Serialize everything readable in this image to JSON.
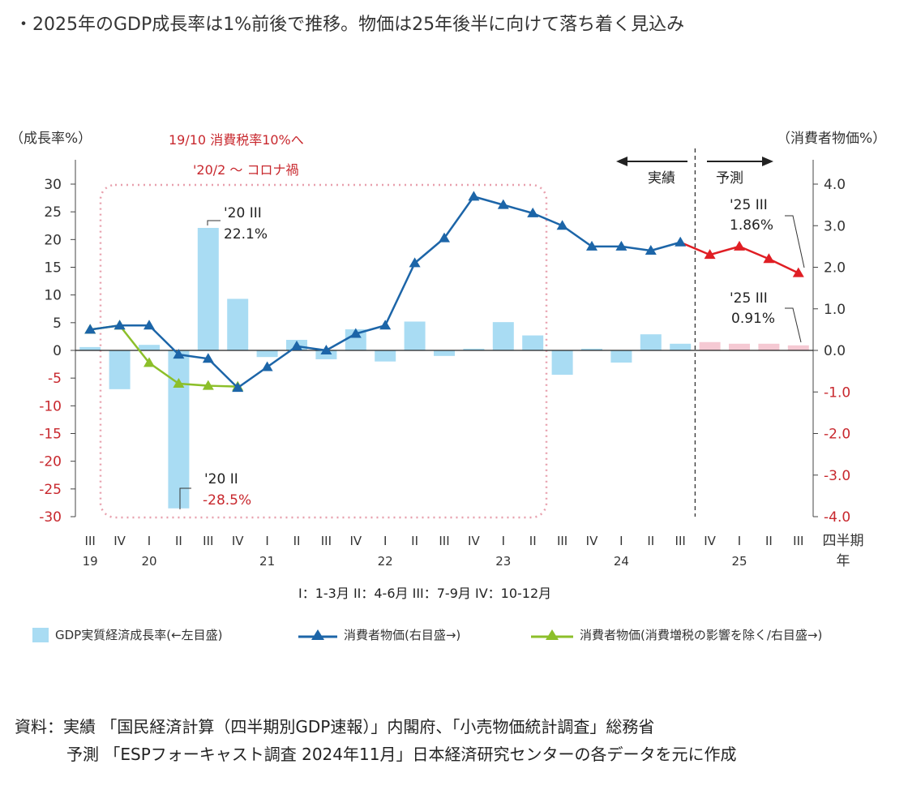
{
  "headline": "・2025年のGDP成長率は1%前後で推移。物価は25年後半に向けて落ち着く見込み",
  "colors": {
    "bar": "#a9dcf3",
    "bar_forecast": "#f5c9d3",
    "cpi": "#1c65a8",
    "cpi_forecast": "#e01e24",
    "cpi_ex_tax": "#8cbf2a",
    "negative_tick": "#c8282e",
    "annotation_red": "#c8282e",
    "box": "#e8a0ad"
  },
  "chart_data": {
    "type": "bar",
    "left_axis_label": "（成長率%）",
    "right_axis_label": "（消費者物価%）",
    "left_ylim": [
      -30,
      30
    ],
    "right_ylim": [
      -4.0,
      4.0
    ],
    "left_ticks": [
      "30",
      "25",
      "20",
      "15",
      "10",
      "5",
      "0",
      "-5",
      "-10",
      "-15",
      "-20",
      "-25",
      "-30"
    ],
    "right_ticks": [
      "4.0",
      "3.0",
      "2.0",
      "1.0",
      "0.0",
      "-1.0",
      "-2.0",
      "-3.0",
      "-4.0"
    ],
    "quarters": [
      "III",
      "IV",
      "I",
      "II",
      "III",
      "IV",
      "I",
      "II",
      "III",
      "IV",
      "I",
      "II",
      "III",
      "IV",
      "I",
      "II",
      "III",
      "IV",
      "I",
      "II",
      "III",
      "IV",
      "I",
      "II",
      "III"
    ],
    "years": [
      {
        "label": "19",
        "index": 0
      },
      {
        "label": "20",
        "index": 2
      },
      {
        "label": "21",
        "index": 6
      },
      {
        "label": "22",
        "index": 10
      },
      {
        "label": "23",
        "index": 14
      },
      {
        "label": "24",
        "index": 18
      },
      {
        "label": "25",
        "index": 22
      }
    ],
    "axis_end_label_top": "四半期",
    "axis_end_label_bottom": "年",
    "forecast_start_index": 21,
    "series": [
      {
        "name": "GDP実質経済成長率(←左目盛)",
        "kind": "bar",
        "axis": "left",
        "values": [
          0.6,
          -7.0,
          1.0,
          -28.5,
          22.1,
          9.3,
          -1.2,
          1.9,
          -1.6,
          3.8,
          -2.0,
          5.2,
          -1.0,
          0.3,
          5.1,
          2.7,
          -4.4,
          0.3,
          -2.2,
          2.9,
          1.2,
          1.5,
          1.2,
          1.2,
          0.91
        ]
      },
      {
        "name": "消費者物価(右目盛→)",
        "kind": "line",
        "axis": "right",
        "values": [
          0.5,
          0.6,
          0.6,
          -0.1,
          -0.2,
          -0.9,
          -0.4,
          0.1,
          0.0,
          0.4,
          0.6,
          2.1,
          2.7,
          3.7,
          3.5,
          3.3,
          3.0,
          2.5,
          2.5,
          2.4,
          2.6,
          2.3,
          2.5,
          2.2,
          1.86
        ]
      },
      {
        "name": "消費者物価(消費増税の影響を除く/右目盛→)",
        "kind": "line",
        "axis": "right",
        "values": [
          0.5,
          0.6,
          -0.3,
          -0.8,
          -0.85,
          -0.87
        ]
      }
    ],
    "annotations": {
      "box_title_1": "19/10 消費税率10%へ",
      "box_title_2": "'20/2 〜 コロナ禍",
      "actual_label": "実績",
      "forecast_label": "予測",
      "peak_q": "'20 III",
      "peak_v": "22.1%",
      "trough_q": "'20 II",
      "trough_v": "-28.5%",
      "cpi_end_q": "'25 III",
      "cpi_end_v": "1.86%",
      "gdp_end_q": "'25 III",
      "gdp_end_v": "0.91%"
    }
  },
  "quarter_note": "I：1-3月 II：4-6月 III：7-9月 IV：10-12月",
  "source_line_1": "資料：実績 「国民経済計算（四半期別GDP速報）」内閣府、「小売物価統計調査」総務省",
  "source_line_2": "予測 「ESPフォーキャスト調査 2024年11月」日本経済研究センターの各データを元に作成"
}
